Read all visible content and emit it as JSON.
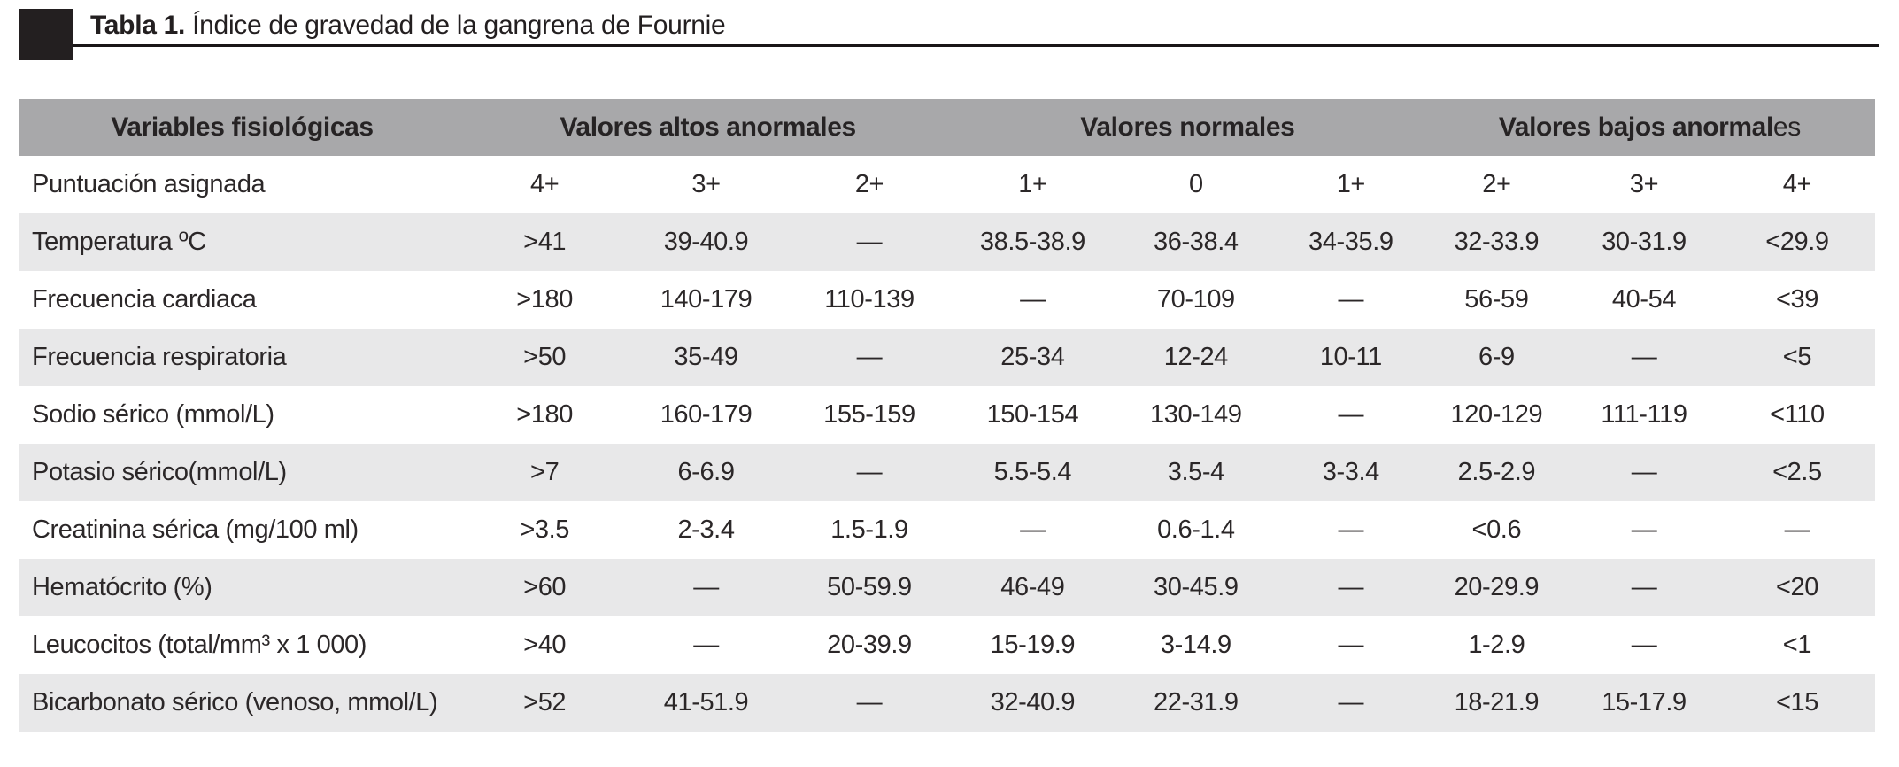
{
  "title": {
    "bold": "Tabla 1.",
    "rest": "Índice de gravedad de la gangrena de Fournie",
    "marker_color": "#231f20"
  },
  "table": {
    "colors": {
      "header_bg": "#a8a8aa",
      "stripe_bg": "#e8e8e9",
      "text": "#2b2728"
    },
    "column_groups": [
      {
        "label": "Variables fisiológicas",
        "span": 1
      },
      {
        "label": "Valores altos anormales",
        "span": 3
      },
      {
        "label": "Valores normales",
        "span": 3
      },
      {
        "label": "Valores bajos anormal",
        "label_suffix": "es",
        "span": 3
      }
    ],
    "column_widths_pct": [
      24,
      8.6,
      8.8,
      8.8,
      8.8,
      8.8,
      7.9,
      7.8,
      8.1,
      8.4
    ],
    "rows": [
      {
        "label": "Puntuación asignada",
        "shaded": false,
        "values": [
          "4+",
          "3+",
          "2+",
          "1+",
          "0",
          "1+",
          "2+",
          "3+",
          "4+"
        ]
      },
      {
        "label": "Temperatura ºC",
        "shaded": true,
        "values": [
          ">41",
          "39-40.9",
          "—",
          "38.5-38.9",
          "36-38.4",
          "34-35.9",
          "32-33.9",
          "30-31.9",
          "<29.9"
        ]
      },
      {
        "label": "Frecuencia cardiaca",
        "shaded": false,
        "values": [
          ">180",
          "140-179",
          "110-139",
          "—",
          "70-109",
          "—",
          "56-59",
          "40-54",
          "<39"
        ]
      },
      {
        "label": "Frecuencia respiratoria",
        "shaded": true,
        "values": [
          ">50",
          "35-49",
          "—",
          "25-34",
          "12-24",
          "10-11",
          "6-9",
          "—",
          "<5"
        ]
      },
      {
        "label": "Sodio sérico (mmol/L)",
        "shaded": false,
        "values": [
          ">180",
          "160-179",
          "155-159",
          "150-154",
          "130-149",
          "—",
          "120-129",
          "111-119",
          "<110"
        ]
      },
      {
        "label": "Potasio sérico(mmol/L)",
        "shaded": true,
        "values": [
          ">7",
          "6-6.9",
          "—",
          "5.5-5.4",
          "3.5-4",
          "3-3.4",
          "2.5-2.9",
          "—",
          "<2.5"
        ]
      },
      {
        "label": "Creatinina sérica (mg/100 ml)",
        "shaded": false,
        "values": [
          ">3.5",
          "2-3.4",
          "1.5-1.9",
          "—",
          "0.6-1.4",
          "—",
          "<0.6",
          "—",
          "—"
        ]
      },
      {
        "label": "Hematócrito (%)",
        "shaded": true,
        "values": [
          ">60",
          "—",
          "50-59.9",
          "46-49",
          "30-45.9",
          "—",
          "20-29.9",
          "—",
          "<20"
        ]
      },
      {
        "label": "Leucocitos (total/mm³ x 1 000)",
        "shaded": false,
        "values": [
          ">40",
          "—",
          "20-39.9",
          "15-19.9",
          "3-14.9",
          "—",
          "1-2.9",
          "—",
          "<1"
        ]
      },
      {
        "label": "Bicarbonato sérico (venoso, mmol/L)",
        "shaded": true,
        "values": [
          ">52",
          "41-51.9",
          "—",
          "32-40.9",
          "22-31.9",
          "—",
          "18-21.9",
          "15-17.9",
          "<15"
        ]
      }
    ]
  }
}
